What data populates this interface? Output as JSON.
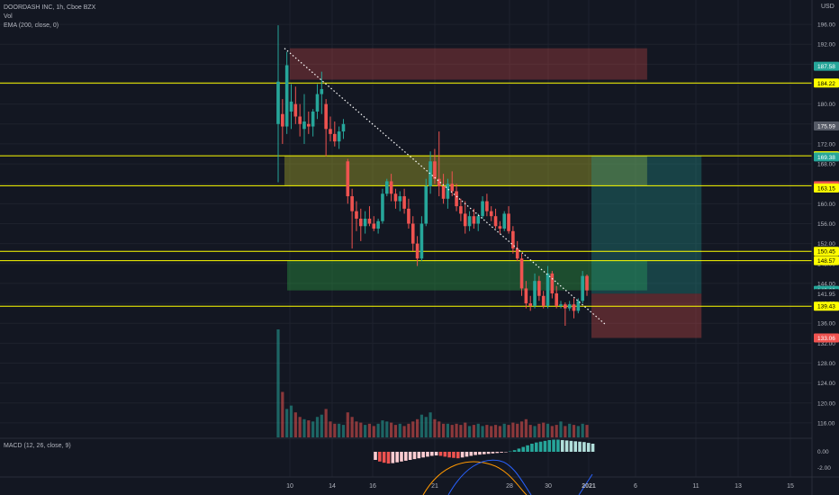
{
  "legend": {
    "symbol": "DOORDASH INC, 1h, Cboe BZX",
    "vol": "Vol",
    "ema": "EMA (200, close, 0)"
  },
  "macd_label": "MACD (12, 26, close, 9)",
  "currency": "USD",
  "colors": {
    "background": "#131722",
    "up": "#26a69a",
    "down": "#ef5350",
    "level_line": "#ffff00",
    "trendline": "#ffffff",
    "grid": "#1e222d"
  },
  "chart_data": {
    "type": "candlestick",
    "price_axis": {
      "ticks": [
        "196.00",
        "192.00",
        "188.00",
        "184.00",
        "180.00",
        "176.00",
        "172.00",
        "168.00",
        "164.00",
        "160.00",
        "156.00",
        "152.00",
        "148.00",
        "144.00",
        "140.00",
        "136.00",
        "132.00",
        "128.00",
        "124.00",
        "120.00",
        "116.00"
      ],
      "ylim": [
        114,
        198
      ]
    },
    "macd_axis": {
      "ticks": [
        "0.00",
        "-2.00"
      ]
    },
    "date_axis": [
      "10",
      "14",
      "16",
      "21",
      "28",
      "30",
      "2021",
      "6",
      "11",
      "13",
      "15"
    ],
    "horizontal_levels": [
      184.22,
      169.62,
      163.6,
      150.45,
      148.57,
      139.43
    ],
    "price_tags": [
      {
        "label": "187.58",
        "value": 187.58,
        "bg": "#26a69a",
        "fg": "#ffffff"
      },
      {
        "label": "184.22",
        "value": 184.22,
        "bg": "#ffff00",
        "fg": "#000000"
      },
      {
        "label": "175.59",
        "value": 175.59,
        "bg": "#555a66",
        "fg": "#ffffff"
      },
      {
        "label": "169.62",
        "value": 169.62,
        "bg": "#ffff00",
        "fg": "#000000"
      },
      {
        "label": "169.38",
        "value": 169.38,
        "bg": "#26a69a",
        "fg": "#ffffff"
      },
      {
        "label": "163.60",
        "value": 163.6,
        "bg": "#ef5350",
        "fg": "#ffffff"
      },
      {
        "label": "163.15",
        "value": 163.15,
        "bg": "#ffff00",
        "fg": "#000000"
      },
      {
        "label": "150.45",
        "value": 150.45,
        "bg": "#ffff00",
        "fg": "#000000"
      },
      {
        "label": "148.57",
        "value": 148.57,
        "bg": "#ffff00",
        "fg": "#000000"
      },
      {
        "label": "142.60",
        "value": 142.6,
        "bg": "#26a69a",
        "fg": "#ffffff"
      },
      {
        "label": "141.95",
        "value": 141.95,
        "bg": "#131722",
        "fg": "#b2b5be"
      },
      {
        "label": "139.43",
        "value": 139.43,
        "bg": "#ffff00",
        "fg": "#000000"
      },
      {
        "label": "133.06",
        "value": 133.06,
        "bg": "#ef5350",
        "fg": "#ffffff"
      }
    ],
    "zones": [
      {
        "name": "resistance-zone",
        "top": 191.2,
        "bottom": 184.9,
        "color": "#ef5350",
        "opacity": 0.28,
        "x": [
          0.3,
          0.72
        ]
      },
      {
        "name": "supply-zone",
        "top": 169.6,
        "bottom": 163.6,
        "color": "#c6c62a",
        "opacity": 0.35,
        "x": [
          0.16,
          0.8
        ]
      },
      {
        "name": "demand-zone",
        "top": 148.6,
        "bottom": 142.6,
        "color": "#2ea043",
        "opacity": 0.4,
        "x": [
          0.17,
          0.8
        ]
      },
      {
        "name": "long-target-zone",
        "top": 169.6,
        "bottom": 141.95,
        "color": "#26a69a",
        "opacity": 0.3,
        "x": [
          0.8,
          0.93
        ]
      },
      {
        "name": "long-stop-zone",
        "top": 141.95,
        "bottom": 133.06,
        "color": "#ef5350",
        "opacity": 0.3,
        "x": [
          0.8,
          0.93
        ]
      }
    ],
    "trendline": {
      "from": {
        "day": 9.6,
        "price": 191.2
      },
      "to": {
        "day": 33.3,
        "price": 135.6
      }
    },
    "candles": [
      {
        "o": 176.0,
        "h": 195.8,
        "l": 164.3,
        "c": 184.5
      },
      {
        "o": 178.0,
        "h": 181.0,
        "l": 172.0,
        "c": 175.5
      },
      {
        "o": 175.5,
        "h": 190.5,
        "l": 174.0,
        "c": 187.8
      },
      {
        "o": 178.5,
        "h": 184.0,
        "l": 175.0,
        "c": 180.5
      },
      {
        "o": 180.0,
        "h": 183.5,
        "l": 176.0,
        "c": 177.5
      },
      {
        "o": 177.5,
        "h": 180.0,
        "l": 173.5,
        "c": 176.0
      },
      {
        "o": 175.0,
        "h": 182.0,
        "l": 172.0,
        "c": 176.5
      },
      {
        "o": 176.0,
        "h": 178.5,
        "l": 174.0,
        "c": 175.5
      },
      {
        "o": 175.5,
        "h": 179.0,
        "l": 173.5,
        "c": 178.5
      },
      {
        "o": 178.5,
        "h": 184.0,
        "l": 177.0,
        "c": 182.0
      },
      {
        "o": 182.0,
        "h": 186.5,
        "l": 178.0,
        "c": 183.0
      },
      {
        "o": 180.0,
        "h": 181.0,
        "l": 169.5,
        "c": 175.0
      },
      {
        "o": 175.0,
        "h": 177.5,
        "l": 172.5,
        "c": 174.0
      },
      {
        "o": 174.0,
        "h": 176.5,
        "l": 171.5,
        "c": 172.5
      },
      {
        "o": 172.5,
        "h": 175.5,
        "l": 171.0,
        "c": 174.5
      },
      {
        "o": 174.5,
        "h": 177.0,
        "l": 173.0,
        "c": 176.0
      },
      {
        "o": 168.5,
        "h": 169.0,
        "l": 160.0,
        "c": 161.5
      },
      {
        "o": 161.5,
        "h": 163.0,
        "l": 151.0,
        "c": 158.5
      },
      {
        "o": 158.5,
        "h": 160.5,
        "l": 154.5,
        "c": 157.0
      },
      {
        "o": 157.0,
        "h": 159.0,
        "l": 152.5,
        "c": 155.5
      },
      {
        "o": 155.5,
        "h": 158.5,
        "l": 154.0,
        "c": 157.0
      },
      {
        "o": 157.0,
        "h": 159.5,
        "l": 155.5,
        "c": 156.0
      },
      {
        "o": 156.0,
        "h": 157.5,
        "l": 154.5,
        "c": 155.0
      },
      {
        "o": 155.0,
        "h": 157.0,
        "l": 154.0,
        "c": 156.5
      },
      {
        "o": 156.5,
        "h": 163.0,
        "l": 156.0,
        "c": 162.0
      },
      {
        "o": 162.0,
        "h": 165.0,
        "l": 161.5,
        "c": 164.5
      },
      {
        "o": 164.5,
        "h": 166.0,
        "l": 160.5,
        "c": 162.0
      },
      {
        "o": 162.0,
        "h": 163.0,
        "l": 159.0,
        "c": 160.5
      },
      {
        "o": 160.5,
        "h": 162.5,
        "l": 158.5,
        "c": 161.5
      },
      {
        "o": 161.5,
        "h": 163.0,
        "l": 158.0,
        "c": 159.0
      },
      {
        "o": 159.0,
        "h": 161.0,
        "l": 155.0,
        "c": 156.0
      },
      {
        "o": 156.0,
        "h": 157.5,
        "l": 150.5,
        "c": 152.0
      },
      {
        "o": 152.0,
        "h": 153.5,
        "l": 147.5,
        "c": 149.0
      },
      {
        "o": 149.0,
        "h": 157.5,
        "l": 148.5,
        "c": 156.0
      },
      {
        "o": 156.0,
        "h": 165.0,
        "l": 155.5,
        "c": 163.5
      },
      {
        "o": 163.5,
        "h": 170.5,
        "l": 162.0,
        "c": 168.5
      },
      {
        "o": 168.5,
        "h": 171.0,
        "l": 164.0,
        "c": 165.0
      },
      {
        "o": 165.0,
        "h": 174.5,
        "l": 161.5,
        "c": 163.5
      },
      {
        "o": 163.5,
        "h": 166.0,
        "l": 160.0,
        "c": 161.0
      },
      {
        "o": 161.0,
        "h": 165.0,
        "l": 159.0,
        "c": 164.0
      },
      {
        "o": 164.0,
        "h": 166.5,
        "l": 161.5,
        "c": 162.5
      },
      {
        "o": 162.5,
        "h": 164.0,
        "l": 158.5,
        "c": 159.5
      },
      {
        "o": 159.5,
        "h": 161.0,
        "l": 156.5,
        "c": 158.0
      },
      {
        "o": 158.0,
        "h": 160.5,
        "l": 154.0,
        "c": 155.5
      },
      {
        "o": 155.5,
        "h": 158.5,
        "l": 154.5,
        "c": 157.5
      },
      {
        "o": 157.5,
        "h": 159.0,
        "l": 155.0,
        "c": 156.0
      },
      {
        "o": 156.0,
        "h": 158.0,
        "l": 154.5,
        "c": 157.5
      },
      {
        "o": 157.5,
        "h": 161.5,
        "l": 157.0,
        "c": 160.5
      },
      {
        "o": 160.5,
        "h": 162.0,
        "l": 157.5,
        "c": 158.5
      },
      {
        "o": 158.5,
        "h": 159.5,
        "l": 156.5,
        "c": 157.5
      },
      {
        "o": 157.5,
        "h": 159.0,
        "l": 155.0,
        "c": 155.5
      },
      {
        "o": 155.5,
        "h": 156.5,
        "l": 154.0,
        "c": 155.0
      },
      {
        "o": 155.0,
        "h": 158.5,
        "l": 154.5,
        "c": 158.0
      },
      {
        "o": 158.0,
        "h": 159.5,
        "l": 154.0,
        "c": 154.5
      },
      {
        "o": 154.5,
        "h": 155.5,
        "l": 150.0,
        "c": 151.0
      },
      {
        "o": 151.0,
        "h": 152.5,
        "l": 148.5,
        "c": 149.0
      },
      {
        "o": 149.0,
        "h": 150.0,
        "l": 141.5,
        "c": 143.0
      },
      {
        "o": 143.0,
        "h": 144.5,
        "l": 139.0,
        "c": 140.0
      },
      {
        "o": 140.0,
        "h": 141.5,
        "l": 138.5,
        "c": 139.5
      },
      {
        "o": 139.5,
        "h": 146.0,
        "l": 139.0,
        "c": 144.5
      },
      {
        "o": 144.5,
        "h": 145.5,
        "l": 140.5,
        "c": 141.5
      },
      {
        "o": 141.5,
        "h": 142.5,
        "l": 139.0,
        "c": 139.5
      },
      {
        "o": 139.5,
        "h": 147.5,
        "l": 139.0,
        "c": 146.0
      },
      {
        "o": 146.0,
        "h": 146.5,
        "l": 141.0,
        "c": 142.0
      },
      {
        "o": 142.0,
        "h": 143.5,
        "l": 139.0,
        "c": 139.5
      },
      {
        "o": 139.5,
        "h": 140.5,
        "l": 139.0,
        "c": 139.8
      },
      {
        "o": 139.8,
        "h": 140.2,
        "l": 135.5,
        "c": 139.0
      },
      {
        "o": 139.0,
        "h": 140.5,
        "l": 138.5,
        "c": 139.8
      },
      {
        "o": 139.8,
        "h": 141.0,
        "l": 137.0,
        "c": 138.5
      },
      {
        "o": 138.5,
        "h": 141.0,
        "l": 138.0,
        "c": 140.5
      },
      {
        "o": 140.5,
        "h": 146.5,
        "l": 140.0,
        "c": 145.5
      },
      {
        "o": 145.5,
        "h": 145.8,
        "l": 141.5,
        "c": 142.6
      }
    ],
    "volume": [
      95,
      40,
      25,
      28,
      22,
      18,
      16,
      15,
      14,
      18,
      20,
      25,
      14,
      12,
      12,
      11,
      22,
      18,
      14,
      13,
      11,
      12,
      10,
      12,
      15,
      14,
      13,
      11,
      12,
      10,
      12,
      14,
      16,
      20,
      18,
      22,
      16,
      14,
      12,
      12,
      11,
      12,
      11,
      13,
      10,
      11,
      12,
      10,
      11,
      10,
      11,
      10,
      12,
      11,
      13,
      12,
      14,
      16,
      11,
      10,
      12,
      13,
      12,
      10,
      11,
      14,
      10,
      12,
      11,
      10,
      12,
      11
    ],
    "macd_hist": [
      -1.0,
      -1.2,
      -1.35,
      -1.45,
      -1.4,
      -1.3,
      -1.2,
      -1.1,
      -1.0,
      -0.9,
      -0.8,
      -0.7,
      -0.6,
      -0.5,
      -0.45,
      -0.5,
      -0.6,
      -0.7,
      -0.75,
      -0.8,
      -0.7,
      -0.6,
      -0.5,
      -0.4,
      -0.35,
      -0.3,
      -0.25,
      -0.2,
      -0.15,
      -0.1,
      -0.05,
      0.05,
      0.2,
      0.4,
      0.6,
      0.8,
      1.0,
      1.15,
      1.25,
      1.35,
      1.45,
      1.5,
      1.5,
      1.45,
      1.4,
      1.35,
      1.3,
      1.25,
      1.2,
      1.1,
      1.0,
      0.9,
      0.8,
      0.7,
      0.6,
      0.5,
      0.4,
      0.3,
      0.2,
      0.15,
      0.1,
      0.05,
      -0.05,
      -0.1,
      -0.15,
      -0.2,
      -0.25,
      -0.3,
      -0.35,
      -0.45,
      -0.55,
      -0.7
    ]
  }
}
